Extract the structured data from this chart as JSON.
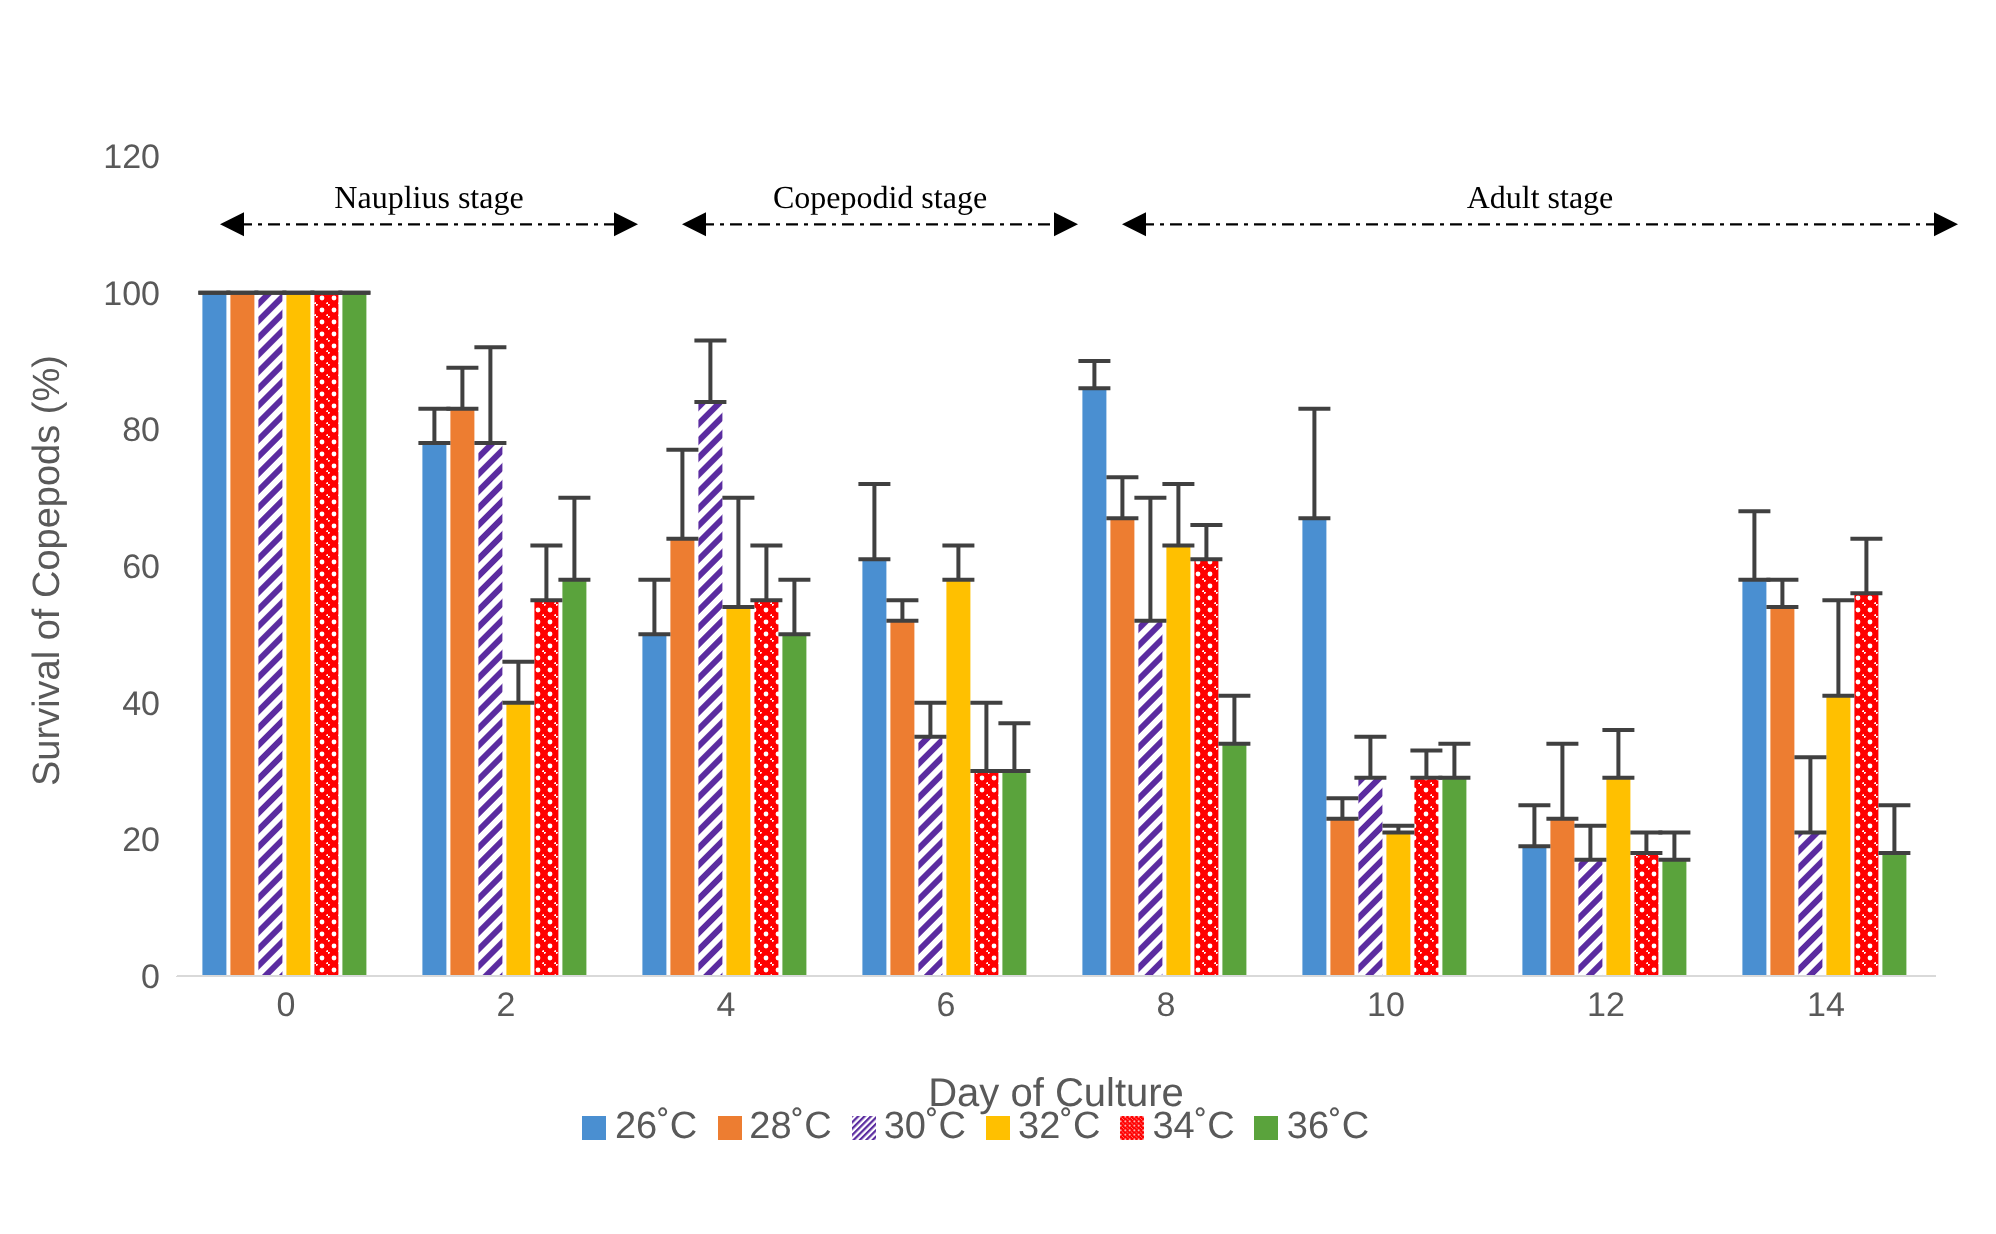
{
  "chart_data": {
    "type": "bar",
    "xlabel": "Day of Culture",
    "ylabel": "Survival of Copepods (%)",
    "categories": [
      "0",
      "2",
      "4",
      "6",
      "8",
      "10",
      "12",
      "14"
    ],
    "ylim": [
      0,
      120
    ],
    "yticks": [
      0,
      20,
      40,
      60,
      80,
      100,
      120
    ],
    "grid": false,
    "legend": "bottom",
    "annotations": [
      "Nauplius stage",
      "Copepodid stage",
      "Adult stage"
    ],
    "series": [
      {
        "name": "26˚C",
        "color": "#4a8fd1",
        "values": [
          100,
          78,
          50,
          61,
          86,
          67,
          19,
          58
        ],
        "errors": [
          null,
          [
            78,
            83
          ],
          [
            50,
            58
          ],
          [
            61,
            72
          ],
          [
            86,
            90
          ],
          [
            67,
            83
          ],
          [
            19,
            25
          ],
          [
            58,
            68
          ]
        ]
      },
      {
        "name": "28˚C",
        "color": "#ed7d31",
        "values": [
          100,
          83,
          64,
          52,
          67,
          23,
          23,
          54
        ],
        "errors": [
          null,
          [
            83,
            89
          ],
          [
            64,
            77
          ],
          [
            52,
            55
          ],
          [
            67,
            73
          ],
          [
            23,
            26
          ],
          [
            23,
            34
          ],
          [
            54,
            58
          ]
        ]
      },
      {
        "name": "30˚C",
        "color": "#5b2ca0",
        "values": [
          100,
          78,
          84,
          35,
          52,
          29,
          17,
          21
        ],
        "errors": [
          null,
          [
            78,
            92
          ],
          [
            84,
            93
          ],
          [
            35,
            40
          ],
          [
            52,
            70
          ],
          [
            29,
            35
          ],
          [
            17,
            22
          ],
          [
            21,
            32
          ]
        ]
      },
      {
        "name": "32˚C",
        "color": "#ffc000",
        "values": [
          100,
          40,
          54,
          58,
          63,
          21,
          29,
          41
        ],
        "errors": [
          null,
          [
            40,
            46
          ],
          [
            54,
            70
          ],
          [
            58,
            63
          ],
          [
            63,
            72
          ],
          [
            21,
            22
          ],
          [
            29,
            36
          ],
          [
            41,
            55
          ]
        ]
      },
      {
        "name": "34˚C",
        "color": "#ff0000",
        "values": [
          100,
          55,
          55,
          30,
          61,
          29,
          18,
          56
        ],
        "errors": [
          null,
          [
            55,
            63
          ],
          [
            55,
            63
          ],
          [
            30,
            40
          ],
          [
            61,
            66
          ],
          [
            29,
            33
          ],
          [
            18,
            21
          ],
          [
            56,
            64
          ]
        ]
      },
      {
        "name": "36˚C",
        "color": "#5aa33c",
        "values": [
          100,
          58,
          50,
          30,
          34,
          29,
          17,
          18
        ],
        "errors": [
          null,
          [
            58,
            70
          ],
          [
            50,
            58
          ],
          [
            30,
            37
          ],
          [
            34,
            41
          ],
          [
            29,
            34
          ],
          [
            17,
            21
          ],
          [
            18,
            25
          ]
        ]
      }
    ]
  }
}
